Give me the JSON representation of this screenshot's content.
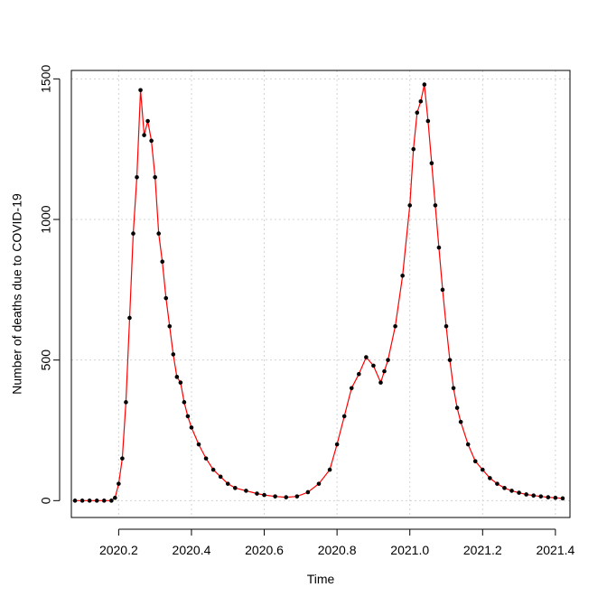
{
  "chart_data": {
    "type": "line",
    "xlabel": "Time",
    "ylabel": "Number of deaths due to COVID-19",
    "xlim": [
      2020.07,
      2021.44
    ],
    "ylim": [
      -60,
      1530
    ],
    "x_ticks": [
      2020.2,
      2020.4,
      2020.6,
      2020.8,
      2021.0,
      2021.2,
      2021.4
    ],
    "x_tick_labels": [
      "2020.2",
      "2020.4",
      "2020.6",
      "2020.8",
      "2021.0",
      "2021.2",
      "2021.4"
    ],
    "y_ticks": [
      0,
      500,
      1000,
      1500
    ],
    "y_tick_labels": [
      "0",
      "500",
      "1000",
      "1500"
    ],
    "grid": true,
    "series": [
      {
        "style": "points",
        "color": "#000000",
        "x": [
          2020.08,
          2020.1,
          2020.12,
          2020.14,
          2020.16,
          2020.18,
          2020.19,
          2020.2,
          2020.21,
          2020.22,
          2020.23,
          2020.24,
          2020.25,
          2020.26,
          2020.27,
          2020.28,
          2020.29,
          2020.3,
          2020.31,
          2020.32,
          2020.33,
          2020.34,
          2020.35,
          2020.36,
          2020.37,
          2020.38,
          2020.39,
          2020.4,
          2020.42,
          2020.44,
          2020.46,
          2020.48,
          2020.5,
          2020.52,
          2020.55,
          2020.58,
          2020.6,
          2020.63,
          2020.66,
          2020.69,
          2020.72,
          2020.75,
          2020.78,
          2020.8,
          2020.82,
          2020.84,
          2020.86,
          2020.88,
          2020.9,
          2020.92,
          2020.93,
          2020.94,
          2020.96,
          2020.98,
          2021.0,
          2021.01,
          2021.02,
          2021.03,
          2021.04,
          2021.05,
          2021.06,
          2021.07,
          2021.08,
          2021.09,
          2021.1,
          2021.11,
          2021.12,
          2021.13,
          2021.14,
          2021.16,
          2021.18,
          2021.2,
          2021.22,
          2021.24,
          2021.26,
          2021.28,
          2021.3,
          2021.32,
          2021.34,
          2021.36,
          2021.38,
          2021.4,
          2021.42
        ],
        "y": [
          0,
          0,
          0,
          0,
          0,
          0,
          10,
          60,
          150,
          350,
          650,
          950,
          1150,
          1460,
          1300,
          1350,
          1280,
          1150,
          950,
          850,
          720,
          620,
          520,
          440,
          420,
          350,
          300,
          260,
          200,
          150,
          110,
          85,
          60,
          45,
          35,
          25,
          20,
          15,
          12,
          15,
          30,
          60,
          110,
          200,
          300,
          400,
          450,
          510,
          480,
          420,
          460,
          500,
          620,
          800,
          1050,
          1250,
          1380,
          1420,
          1480,
          1350,
          1200,
          1050,
          900,
          750,
          620,
          500,
          400,
          330,
          280,
          200,
          140,
          110,
          80,
          60,
          45,
          35,
          28,
          22,
          18,
          15,
          12,
          10,
          8
        ]
      },
      {
        "style": "line",
        "color": "#ff0000",
        "x": [
          2020.08,
          2020.1,
          2020.12,
          2020.14,
          2020.16,
          2020.18,
          2020.19,
          2020.2,
          2020.21,
          2020.22,
          2020.23,
          2020.24,
          2020.25,
          2020.26,
          2020.27,
          2020.28,
          2020.29,
          2020.3,
          2020.31,
          2020.32,
          2020.33,
          2020.34,
          2020.35,
          2020.36,
          2020.37,
          2020.38,
          2020.39,
          2020.4,
          2020.42,
          2020.44,
          2020.46,
          2020.48,
          2020.5,
          2020.52,
          2020.55,
          2020.58,
          2020.6,
          2020.63,
          2020.66,
          2020.69,
          2020.72,
          2020.75,
          2020.78,
          2020.8,
          2020.82,
          2020.84,
          2020.86,
          2020.88,
          2020.9,
          2020.92,
          2020.93,
          2020.94,
          2020.96,
          2020.98,
          2021.0,
          2021.01,
          2021.02,
          2021.03,
          2021.04,
          2021.05,
          2021.06,
          2021.07,
          2021.08,
          2021.09,
          2021.1,
          2021.11,
          2021.12,
          2021.13,
          2021.14,
          2021.16,
          2021.18,
          2021.2,
          2021.22,
          2021.24,
          2021.26,
          2021.28,
          2021.3,
          2021.32,
          2021.34,
          2021.36,
          2021.38,
          2021.4,
          2021.42
        ],
        "y": [
          0,
          0,
          0,
          0,
          0,
          0,
          10,
          60,
          150,
          350,
          650,
          950,
          1150,
          1460,
          1300,
          1350,
          1280,
          1150,
          950,
          850,
          720,
          620,
          520,
          440,
          420,
          350,
          300,
          260,
          200,
          150,
          110,
          85,
          60,
          45,
          35,
          25,
          20,
          15,
          12,
          15,
          30,
          60,
          110,
          200,
          300,
          400,
          450,
          510,
          480,
          420,
          460,
          500,
          620,
          800,
          1050,
          1250,
          1380,
          1420,
          1480,
          1350,
          1200,
          1050,
          900,
          750,
          620,
          500,
          400,
          330,
          280,
          200,
          140,
          110,
          80,
          60,
          45,
          35,
          28,
          22,
          18,
          15,
          12,
          10,
          8
        ]
      }
    ]
  }
}
